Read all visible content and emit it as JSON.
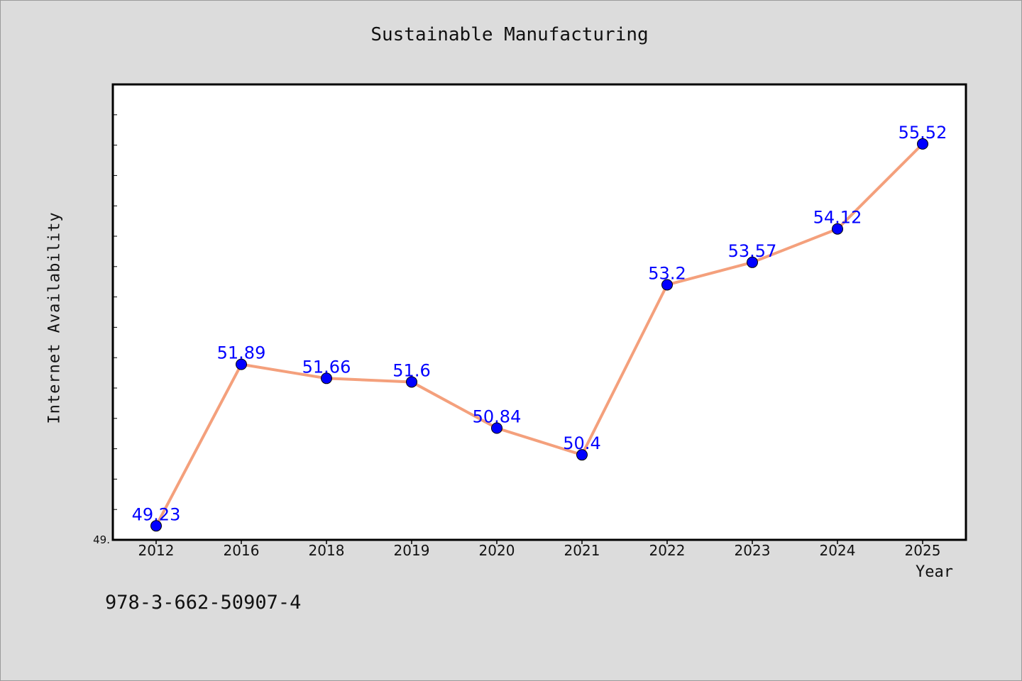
{
  "chart_data": {
    "type": "line",
    "title": "Sustainable Manufacturing",
    "xlabel": "Year",
    "ylabel": "Internet Availability",
    "categories": [
      "2012",
      "2016",
      "2018",
      "2019",
      "2020",
      "2021",
      "2022",
      "2023",
      "2024",
      "2025"
    ],
    "series": [
      {
        "values": [
          49.23,
          51.89,
          51.66,
          51.6,
          50.84,
          50.4,
          53.2,
          53.57,
          54.12,
          55.52
        ],
        "data_labels": [
          "49.23",
          "51.89",
          "51.66",
          "51.6",
          "50.84",
          "50.4",
          "53.2",
          "53.57",
          "54.12",
          "55.52"
        ]
      }
    ],
    "ylim": [
      49.0,
      56.5
    ],
    "ytick_labels": [
      "49."
    ],
    "grid": false,
    "legend": "none",
    "colors": {
      "line": "#f4a07c",
      "marker": "#0000ff",
      "label": "#0000ff",
      "background": "#dcdcdc",
      "plot_background": "#ffffff"
    }
  },
  "footnote": "978-3-662-50907-4"
}
